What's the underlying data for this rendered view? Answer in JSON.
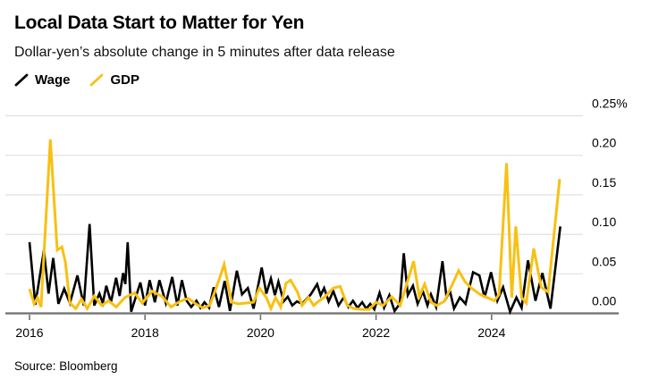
{
  "header": {
    "title": "Local Data Start to Matter for Yen",
    "subtitle": "Dollar-yen’s absolute change in 5 minutes after data release"
  },
  "legend": {
    "items": [
      {
        "label": "Wage",
        "color": "#000000"
      },
      {
        "label": "GDP",
        "color": "#F9C013"
      }
    ]
  },
  "footer": {
    "source": "Source: Bloomberg"
  },
  "colors": {
    "background": "#ffffff",
    "gridline": "#e0e0e0",
    "axis": "#6f6f6f",
    "text": "#000000",
    "wage": "#000000",
    "gdp": "#F9C013"
  },
  "chart_data": {
    "type": "line",
    "title": "Local Data Start to Matter for Yen",
    "subtitle": "Dollar-yen’s absolute change in 5 minutes after data release",
    "xlabel": "",
    "ylabel": "",
    "unit": "%",
    "grid": "horizontal",
    "legend_position": "top-left",
    "xlim": [
      2015.58,
      2026.2
    ],
    "ylim": [
      0,
      0.25
    ],
    "y_axis": {
      "side": "right",
      "ticks": [
        {
          "value": 0.0,
          "label": "0.00"
        },
        {
          "value": 0.05,
          "label": "0.05"
        },
        {
          "value": 0.1,
          "label": "0.10"
        },
        {
          "value": 0.15,
          "label": "0.15"
        },
        {
          "value": 0.2,
          "label": "0.20"
        },
        {
          "value": 0.25,
          "label": "0.25%"
        }
      ]
    },
    "x_axis": {
      "ticks": [
        {
          "value": 2016,
          "label": "2016"
        },
        {
          "value": 2018,
          "label": "2018"
        },
        {
          "value": 2020,
          "label": "2020"
        },
        {
          "value": 2022,
          "label": "2022"
        },
        {
          "value": 2024,
          "label": "2024"
        }
      ]
    },
    "series": [
      {
        "name": "Wage",
        "color": "#000000",
        "stroke_width": 2.6,
        "points": [
          [
            2016.0,
            0.09
          ],
          [
            2016.1,
            0.011
          ],
          [
            2016.25,
            0.08
          ],
          [
            2016.33,
            0.025
          ],
          [
            2016.41,
            0.07
          ],
          [
            2016.5,
            0.012
          ],
          [
            2016.6,
            0.031
          ],
          [
            2016.7,
            0.013
          ],
          [
            2016.83,
            0.048
          ],
          [
            2016.94,
            0.01
          ],
          [
            2017.04,
            0.113
          ],
          [
            2017.12,
            0.01
          ],
          [
            2017.21,
            0.025
          ],
          [
            2017.27,
            0.013
          ],
          [
            2017.33,
            0.035
          ],
          [
            2017.41,
            0.014
          ],
          [
            2017.5,
            0.045
          ],
          [
            2017.56,
            0.022
          ],
          [
            2017.62,
            0.051
          ],
          [
            2017.66,
            0.037
          ],
          [
            2017.7,
            0.09
          ],
          [
            2017.76,
            0.002
          ],
          [
            2017.92,
            0.039
          ],
          [
            2018.0,
            0.01
          ],
          [
            2018.08,
            0.042
          ],
          [
            2018.17,
            0.014
          ],
          [
            2018.25,
            0.042
          ],
          [
            2018.36,
            0.013
          ],
          [
            2018.47,
            0.046
          ],
          [
            2018.56,
            0.01
          ],
          [
            2018.64,
            0.042
          ],
          [
            2018.72,
            0.016
          ],
          [
            2018.8,
            0.008
          ],
          [
            2018.89,
            0.016
          ],
          [
            2018.96,
            0.007
          ],
          [
            2019.03,
            0.014
          ],
          [
            2019.11,
            0.007
          ],
          [
            2019.19,
            0.033
          ],
          [
            2019.28,
            0.008
          ],
          [
            2019.38,
            0.041
          ],
          [
            2019.47,
            0.003
          ],
          [
            2019.59,
            0.054
          ],
          [
            2019.68,
            0.024
          ],
          [
            2019.78,
            0.032
          ],
          [
            2019.88,
            0.006
          ],
          [
            2020.02,
            0.058
          ],
          [
            2020.1,
            0.025
          ],
          [
            2020.18,
            0.044
          ],
          [
            2020.25,
            0.023
          ],
          [
            2020.31,
            0.04
          ],
          [
            2020.4,
            0.015
          ],
          [
            2020.47,
            0.021
          ],
          [
            2020.55,
            0.01
          ],
          [
            2020.63,
            0.015
          ],
          [
            2020.72,
            0.012
          ],
          [
            2020.87,
            0.024
          ],
          [
            2020.98,
            0.037
          ],
          [
            2021.04,
            0.023
          ],
          [
            2021.1,
            0.032
          ],
          [
            2021.18,
            0.015
          ],
          [
            2021.26,
            0.028
          ],
          [
            2021.35,
            0.01
          ],
          [
            2021.44,
            0.02
          ],
          [
            2021.52,
            0.008
          ],
          [
            2021.6,
            0.016
          ],
          [
            2021.68,
            0.007
          ],
          [
            2021.76,
            0.014
          ],
          [
            2021.83,
            0.006
          ],
          [
            2021.9,
            0.012
          ],
          [
            2021.97,
            0.005
          ],
          [
            2022.06,
            0.026
          ],
          [
            2022.14,
            0.007
          ],
          [
            2022.23,
            0.023
          ],
          [
            2022.32,
            0.003
          ],
          [
            2022.41,
            0.012
          ],
          [
            2022.48,
            0.076
          ],
          [
            2022.55,
            0.023
          ],
          [
            2022.64,
            0.035
          ],
          [
            2022.72,
            0.012
          ],
          [
            2022.81,
            0.028
          ],
          [
            2022.89,
            0.01
          ],
          [
            2022.95,
            0.024
          ],
          [
            2023.04,
            0.008
          ],
          [
            2023.15,
            0.066
          ],
          [
            2023.22,
            0.02
          ],
          [
            2023.28,
            0.028
          ],
          [
            2023.35,
            0.006
          ],
          [
            2023.45,
            0.02
          ],
          [
            2023.55,
            0.012
          ],
          [
            2023.68,
            0.052
          ],
          [
            2023.79,
            0.048
          ],
          [
            2023.88,
            0.02
          ],
          [
            2023.99,
            0.052
          ],
          [
            2024.1,
            0.016
          ],
          [
            2024.2,
            0.033
          ],
          [
            2024.32,
            0.002
          ],
          [
            2024.43,
            0.02
          ],
          [
            2024.52,
            0.007
          ],
          [
            2024.63,
            0.067
          ],
          [
            2024.76,
            0.016
          ],
          [
            2024.88,
            0.051
          ],
          [
            2025.02,
            0.006
          ],
          [
            2025.19,
            0.11
          ]
        ]
      },
      {
        "name": "GDP",
        "color": "#F9C013",
        "stroke_width": 3,
        "points": [
          [
            2016.0,
            0.031
          ],
          [
            2016.08,
            0.012
          ],
          [
            2016.14,
            0.02
          ],
          [
            2016.2,
            0.008
          ],
          [
            2016.36,
            0.22
          ],
          [
            2016.48,
            0.08
          ],
          [
            2016.56,
            0.084
          ],
          [
            2016.62,
            0.065
          ],
          [
            2016.7,
            0.013
          ],
          [
            2016.8,
            0.006
          ],
          [
            2016.9,
            0.018
          ],
          [
            2017.0,
            0.006
          ],
          [
            2017.12,
            0.022
          ],
          [
            2017.25,
            0.01
          ],
          [
            2017.37,
            0.016
          ],
          [
            2017.5,
            0.008
          ],
          [
            2017.65,
            0.02
          ],
          [
            2017.82,
            0.026
          ],
          [
            2017.95,
            0.013
          ],
          [
            2018.12,
            0.028
          ],
          [
            2018.3,
            0.021
          ],
          [
            2018.45,
            0.008
          ],
          [
            2018.6,
            0.015
          ],
          [
            2018.75,
            0.019
          ],
          [
            2018.88,
            0.012
          ],
          [
            2019.0,
            0.007
          ],
          [
            2019.12,
            0.01
          ],
          [
            2019.28,
            0.042
          ],
          [
            2019.37,
            0.062
          ],
          [
            2019.5,
            0.014
          ],
          [
            2019.62,
            0.012
          ],
          [
            2019.75,
            0.013
          ],
          [
            2019.88,
            0.014
          ],
          [
            2019.98,
            0.032
          ],
          [
            2020.1,
            0.02
          ],
          [
            2020.18,
            0.006
          ],
          [
            2020.26,
            0.02
          ],
          [
            2020.35,
            0.008
          ],
          [
            2020.44,
            0.038
          ],
          [
            2020.52,
            0.042
          ],
          [
            2020.64,
            0.027
          ],
          [
            2020.72,
            0.01
          ],
          [
            2020.83,
            0.02
          ],
          [
            2020.92,
            0.01
          ],
          [
            2021.0,
            0.015
          ],
          [
            2021.1,
            0.02
          ],
          [
            2021.26,
            0.032
          ],
          [
            2021.38,
            0.034
          ],
          [
            2021.5,
            0.01
          ],
          [
            2021.62,
            0.006
          ],
          [
            2021.75,
            0.005
          ],
          [
            2021.88,
            0.005
          ],
          [
            2022.0,
            0.014
          ],
          [
            2022.12,
            0.01
          ],
          [
            2022.27,
            0.021
          ],
          [
            2022.42,
            0.01
          ],
          [
            2022.65,
            0.066
          ],
          [
            2022.75,
            0.021
          ],
          [
            2022.84,
            0.037
          ],
          [
            2022.95,
            0.014
          ],
          [
            2023.05,
            0.01
          ],
          [
            2023.18,
            0.015
          ],
          [
            2023.33,
            0.038
          ],
          [
            2023.43,
            0.054
          ],
          [
            2023.54,
            0.04
          ],
          [
            2023.65,
            0.032
          ],
          [
            2023.8,
            0.024
          ],
          [
            2023.92,
            0.02
          ],
          [
            2024.05,
            0.016
          ],
          [
            2024.13,
            0.024
          ],
          [
            2024.26,
            0.19
          ],
          [
            2024.35,
            0.02
          ],
          [
            2024.42,
            0.11
          ],
          [
            2024.52,
            0.02
          ],
          [
            2024.6,
            0.013
          ],
          [
            2024.73,
            0.082
          ],
          [
            2024.86,
            0.033
          ],
          [
            2024.98,
            0.027
          ],
          [
            2025.18,
            0.17
          ]
        ]
      }
    ]
  }
}
